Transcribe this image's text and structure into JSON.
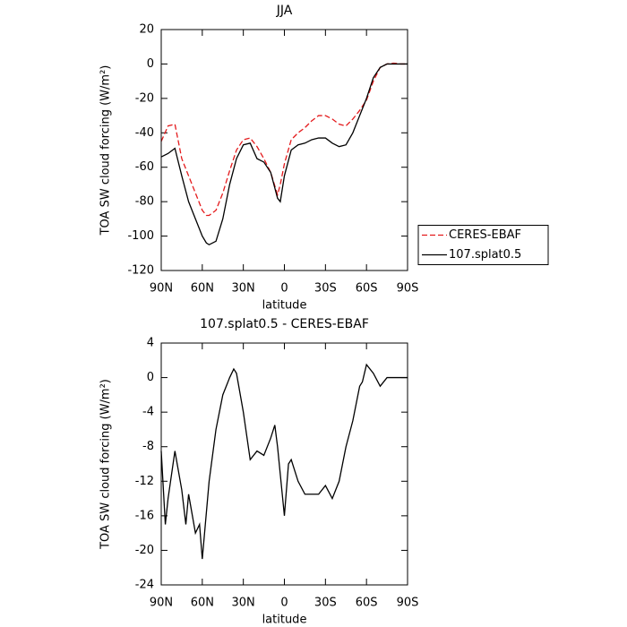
{
  "chart_data": [
    {
      "type": "line",
      "title": "JJA",
      "x_label": "latitude",
      "y_label": "TOA SW cloud forcing (W/m²)",
      "x": [
        90,
        85,
        80,
        75,
        70,
        65,
        60,
        57,
        55,
        50,
        45,
        40,
        35,
        30,
        25,
        20,
        15,
        10,
        5,
        3,
        0,
        -5,
        -10,
        -15,
        -20,
        -25,
        -30,
        -35,
        -40,
        -45,
        -50,
        -55,
        -60,
        -65,
        -70,
        -75,
        -80,
        -85,
        -90
      ],
      "series": [
        {
          "name": "CERES-EBAF",
          "color": "#e41a1c",
          "dash": true,
          "values": [
            -45,
            -36,
            -35,
            -55,
            -65,
            -75,
            -85,
            -88,
            -88,
            -85,
            -75,
            -62,
            -50,
            -44,
            -43,
            -48,
            -55,
            -63,
            -76,
            -70,
            -58,
            -44,
            -40,
            -37,
            -33,
            -30,
            -30,
            -32,
            -35,
            -36,
            -32,
            -27,
            -21,
            -10,
            -2,
            0,
            0.5,
            0,
            0
          ]
        },
        {
          "name": "107.splat0.5",
          "color": "#000000",
          "dash": false,
          "values": [
            -54,
            -52,
            -49,
            -65,
            -80,
            -90,
            -100,
            -104,
            -105,
            -103,
            -90,
            -70,
            -55,
            -47,
            -46,
            -55,
            -57,
            -63,
            -78,
            -80,
            -65,
            -50,
            -47,
            -46,
            -44,
            -43,
            -43,
            -46,
            -48,
            -47,
            -40,
            -30,
            -20,
            -8,
            -2,
            0,
            0,
            0,
            0
          ]
        }
      ],
      "xlim": [
        90,
        -90
      ],
      "xticks": [
        {
          "value": 90,
          "label": "90N"
        },
        {
          "value": 60,
          "label": "60N"
        },
        {
          "value": 30,
          "label": "30N"
        },
        0,
        {
          "value": -30,
          "label": "30S"
        },
        {
          "value": -60,
          "label": "60S"
        },
        {
          "value": -90,
          "label": "90S"
        }
      ],
      "ylim": [
        -120,
        20
      ],
      "yticks": [
        20,
        0,
        -20,
        -40,
        -60,
        -80,
        -100,
        -120
      ],
      "legend": "right"
    },
    {
      "type": "line",
      "title": "107.splat0.5 - CERES-EBAF",
      "x_label": "latitude",
      "y_label": "TOA SW cloud forcing (W/m²)",
      "x": [
        90,
        87,
        85,
        80,
        75,
        72,
        70,
        65,
        62,
        60,
        55,
        50,
        45,
        40,
        37,
        35,
        30,
        25,
        20,
        15,
        10,
        7,
        5,
        0,
        -3,
        -5,
        -10,
        -15,
        -20,
        -25,
        -30,
        -35,
        -40,
        -45,
        -50,
        -55,
        -57,
        -60,
        -65,
        -70,
        -75,
        -80,
        -85,
        -90
      ],
      "series": [
        {
          "color": "#000000",
          "dash": false,
          "values": [
            -8.5,
            -17,
            -14,
            -8.5,
            -13,
            -17,
            -13.5,
            -18,
            -17,
            -21,
            -12,
            -6,
            -2,
            0,
            1,
            0.5,
            -4,
            -9.5,
            -8.5,
            -9,
            -7,
            -5.5,
            -8,
            -16,
            -10,
            -9.5,
            -12,
            -13.5,
            -13.5,
            -13.5,
            -12.5,
            -14,
            -12,
            -8,
            -5,
            -1,
            -0.5,
            1.5,
            0.5,
            -1,
            0,
            0,
            0,
            0
          ]
        }
      ],
      "xlim": [
        90,
        -90
      ],
      "xticks": [
        {
          "value": 90,
          "label": "90N"
        },
        {
          "value": 60,
          "label": "60N"
        },
        {
          "value": 30,
          "label": "30N"
        },
        0,
        {
          "value": -30,
          "label": "30S"
        },
        {
          "value": -60,
          "label": "60S"
        },
        {
          "value": -90,
          "label": "90S"
        }
      ],
      "ylim": [
        -24,
        4
      ],
      "yticks": [
        4,
        0,
        -4,
        -8,
        -12,
        -16,
        -20,
        -24
      ]
    }
  ]
}
